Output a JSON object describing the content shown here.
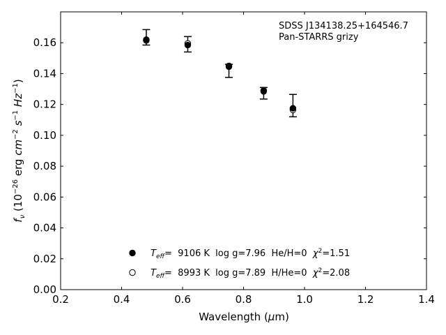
{
  "chart_data": {
    "type": "scatter",
    "xlabel": "Wavelength (μm)",
    "ylabel": "f_ν (10^-26 erg cm^-2 s^-1 Hz^-1)",
    "xlim": [
      0.2,
      1.4
    ],
    "ylim": [
      0.0,
      0.18
    ],
    "x_ticks": [
      0.2,
      0.4,
      0.6,
      0.8,
      1.0,
      1.2,
      1.4
    ],
    "x_tick_labels": [
      "0.2",
      "0.4",
      "0.6",
      "0.8",
      "1.0",
      "1.2",
      "1.4"
    ],
    "y_ticks": [
      0.0,
      0.02,
      0.04,
      0.06,
      0.08,
      0.1,
      0.12,
      0.14,
      0.16
    ],
    "y_tick_labels": [
      "0.00",
      "0.02",
      "0.04",
      "0.06",
      "0.08",
      "0.10",
      "0.12",
      "0.14",
      "0.16"
    ],
    "grid": false,
    "annotations": [
      "SDSS J134138.25+164546.7",
      "Pan-STARRS grizy"
    ],
    "observed": {
      "x": [
        0.481,
        0.617,
        0.752,
        0.866,
        0.962
      ],
      "y": [
        0.1635,
        0.159,
        0.1445,
        0.1285,
        0.117
      ],
      "yerr_low": [
        0.005,
        0.005,
        0.007,
        0.005,
        0.005
      ],
      "yerr_high": [
        0.005,
        0.005,
        0.0015,
        0.0025,
        0.0095
      ]
    },
    "series": [
      {
        "marker": "filled",
        "legend": "T_eff=  9106 K  log g=7.96  He/H=0  χ²=1.51",
        "x": [
          0.481,
          0.617,
          0.752,
          0.866,
          0.962
        ],
        "y": [
          0.162,
          0.1585,
          0.1445,
          0.129,
          0.1175
        ]
      },
      {
        "marker": "open",
        "legend": "T_eff=  8993 K  log g=7.89  H/He=0  χ²=2.08",
        "x": [
          0.481,
          0.617,
          0.752,
          0.866,
          0.962
        ],
        "y": [
          0.1615,
          0.1595,
          0.145,
          0.1285,
          0.1165
        ]
      }
    ],
    "legend_placement": "lower-center",
    "annotation_placement": "top-right"
  }
}
